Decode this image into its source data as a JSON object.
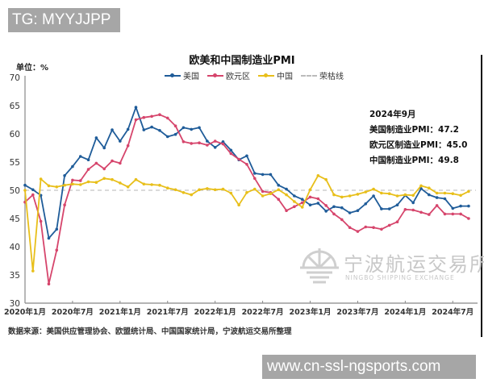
{
  "watermarks": {
    "top": "TG: MYYJJPP",
    "bottom": "www.cn-ssl-ngsports.com"
  },
  "header": {
    "unit": "单位：%",
    "title": "欧美和中国制造业PMI"
  },
  "legend": [
    {
      "label": "美国",
      "color": "#1f5c99",
      "style": "line-marker"
    },
    {
      "label": "欧元区",
      "color": "#d6456c",
      "style": "line-marker"
    },
    {
      "label": "中国",
      "color": "#e8bf1a",
      "style": "line-marker"
    },
    {
      "label": "荣枯线",
      "color": "#bbbbbb",
      "style": "dash"
    }
  ],
  "annotation": {
    "date": "2024年9月",
    "us": "美国制造业PMI：47.2",
    "eu": "欧元区制造业PMI：45.0",
    "cn": "中国制造业PMI：49.8"
  },
  "source": "数据来源：美国供应管理协会、欧盟统计局、中国国家统计局，宁波航运交易所整理",
  "logo": {
    "cn": "宁波航运交易所",
    "en": "NINGBO SHIPPING EXCHANGE"
  },
  "chart_data": {
    "type": "line",
    "title": "欧美和中国制造业PMI",
    "xlabel": "",
    "ylabel": "单位：%",
    "ylim": [
      30,
      70
    ],
    "yticks": [
      30,
      35,
      40,
      45,
      50,
      55,
      60,
      65,
      70
    ],
    "xtick_labels": [
      "2020年1月",
      "2020年7月",
      "2021年1月",
      "2021年7月",
      "2022年1月",
      "2022年7月",
      "2023年1月",
      "2023年7月",
      "2024年1月",
      "2024年7月"
    ],
    "x_start": "2020-01",
    "x_end": "2024-09",
    "reference_line": {
      "name": "荣枯线",
      "value": 50
    },
    "legend_position": "top",
    "grid": false,
    "series": [
      {
        "name": "美国",
        "color": "#1f5c99",
        "values": [
          50.9,
          50.1,
          49.1,
          41.5,
          43.1,
          52.6,
          54.2,
          56.0,
          55.4,
          59.3,
          57.5,
          60.7,
          58.7,
          60.8,
          64.7,
          60.7,
          61.2,
          60.6,
          59.5,
          59.9,
          61.1,
          60.8,
          61.1,
          58.7,
          57.6,
          58.6,
          57.1,
          55.4,
          56.1,
          53.0,
          52.8,
          52.8,
          50.9,
          50.2,
          49.0,
          48.4,
          47.4,
          47.7,
          46.3,
          47.1,
          46.9,
          46.0,
          46.4,
          47.6,
          49.0,
          46.7,
          46.7,
          47.4,
          49.1,
          47.8,
          50.3,
          49.2,
          48.7,
          48.5,
          46.8,
          47.2,
          47.2
        ]
      },
      {
        "name": "欧元区",
        "color": "#d6456c",
        "values": [
          47.9,
          49.2,
          44.5,
          33.4,
          39.4,
          47.4,
          51.8,
          51.7,
          53.7,
          54.8,
          53.8,
          55.2,
          54.8,
          57.9,
          62.5,
          62.9,
          63.1,
          63.4,
          62.8,
          61.4,
          58.6,
          58.3,
          58.4,
          58.0,
          58.7,
          58.2,
          56.5,
          55.5,
          54.6,
          52.1,
          49.8,
          49.6,
          48.4,
          46.4,
          47.1,
          47.8,
          48.8,
          48.5,
          47.3,
          45.8,
          44.8,
          43.4,
          42.7,
          43.5,
          43.4,
          43.1,
          43.8,
          44.4,
          46.6,
          46.5,
          46.1,
          45.7,
          47.3,
          45.8,
          45.8,
          45.8,
          45.0
        ]
      },
      {
        "name": "中国",
        "color": "#e8bf1a",
        "values": [
          50.0,
          35.7,
          52.0,
          50.8,
          50.6,
          50.9,
          51.1,
          51.0,
          51.5,
          51.4,
          52.1,
          51.9,
          51.3,
          50.6,
          51.9,
          51.1,
          51.0,
          50.9,
          50.4,
          50.1,
          49.6,
          49.2,
          50.1,
          50.3,
          50.1,
          50.2,
          49.5,
          47.4,
          49.6,
          50.2,
          49.0,
          49.4,
          50.1,
          49.2,
          48.0,
          47.0,
          50.1,
          52.6,
          51.9,
          49.2,
          48.8,
          49.0,
          49.3,
          49.7,
          50.2,
          49.5,
          49.4,
          49.0,
          49.2,
          49.1,
          50.8,
          50.4,
          49.5,
          49.5,
          49.4,
          49.1,
          49.8
        ]
      }
    ]
  }
}
